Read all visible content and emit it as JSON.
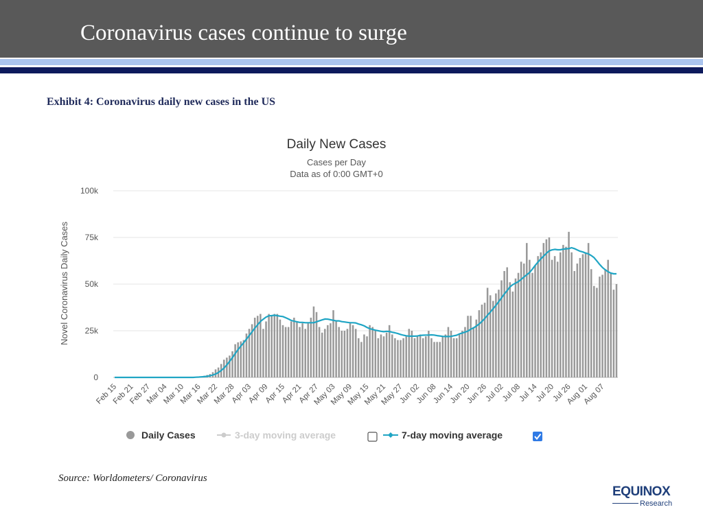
{
  "slide": {
    "title": "Coronavirus cases continue to surge",
    "exhibit": "Exhibit 4: Coronavirus daily new cases in the US",
    "source": "Source: Worldometers/ Coronavirus",
    "logo": {
      "text": "EQUINOX",
      "subtext": "Research"
    },
    "colors": {
      "header": "#595959",
      "stripe_light": "#aac4ee",
      "stripe_dark": "#0d1a5c"
    }
  },
  "chart_data": {
    "type": "bar",
    "title": "Daily New Cases",
    "subtitle": [
      "Cases per Day",
      "Data as of 0:00 GMT+0"
    ],
    "ylabel": "Novel Coronavirus Daily Cases",
    "ylim": [
      0,
      100000
    ],
    "y_ticks": [
      0,
      25000,
      50000,
      75000,
      100000
    ],
    "y_tick_labels": [
      "0",
      "25k",
      "50k",
      "75k",
      "100k"
    ],
    "x_start": "Feb 15",
    "x_tick_labels": [
      "Feb 15",
      "Feb 21",
      "Feb 27",
      "Mar 04",
      "Mar 10",
      "Mar 16",
      "Mar 22",
      "Mar 28",
      "Apr 03",
      "Apr 09",
      "Apr 15",
      "Apr 21",
      "Apr 27",
      "May 03",
      "May 09",
      "May 15",
      "May 21",
      "May 27",
      "Jun 02",
      "Jun 08",
      "Jun 14",
      "Jun 20",
      "Jun 26",
      "Jul 02",
      "Jul 08",
      "Jul 14",
      "Jul 20",
      "Jul 26",
      "Aug 01",
      "Aug 07"
    ],
    "grid": true,
    "legend_position": "bottom",
    "colors": {
      "bars": "#999999",
      "avg3": "#cccccc",
      "avg7": "#1fa5c4"
    },
    "series": [
      {
        "name": "Daily Cases",
        "type": "bar",
        "values": [
          0,
          0,
          0,
          0,
          0,
          0,
          0,
          0,
          0,
          0,
          0,
          0,
          0,
          0,
          0,
          0,
          0,
          0,
          0,
          0,
          0,
          0,
          0,
          0,
          0,
          0,
          0,
          100,
          200,
          300,
          400,
          600,
          900,
          1300,
          1800,
          2800,
          4300,
          5300,
          7200,
          9500,
          10600,
          11700,
          14000,
          17800,
          18800,
          19300,
          20000,
          23500,
          26000,
          28500,
          32000,
          33000,
          34000,
          26000,
          30000,
          34000,
          33000,
          34000,
          34000,
          31000,
          28000,
          27000,
          27000,
          30000,
          32000,
          30000,
          27000,
          29000,
          26000,
          29000,
          32000,
          38000,
          35000,
          27000,
          24000,
          26000,
          28000,
          29000,
          36000,
          30000,
          27000,
          25000,
          25000,
          26000,
          29000,
          28000,
          26000,
          21000,
          19000,
          23000,
          22000,
          28000,
          27000,
          25000,
          21000,
          23000,
          22000,
          24000,
          28000,
          23000,
          21000,
          20000,
          20000,
          21000,
          22000,
          26000,
          25000,
          21000,
          22000,
          23000,
          21000,
          22000,
          25000,
          21000,
          19000,
          19000,
          19000,
          22000,
          23000,
          27000,
          25000,
          21000,
          21000,
          23000,
          25000,
          27000,
          33000,
          33000,
          27000,
          31000,
          36000,
          39000,
          40000,
          48000,
          44000,
          41000,
          45000,
          47000,
          52000,
          57000,
          59000,
          51000,
          46000,
          53000,
          56000,
          62000,
          61000,
          72000,
          63000,
          56000,
          60000,
          65000,
          67000,
          72000,
          74000,
          75000,
          63000,
          65000,
          62000,
          67000,
          71000,
          70000,
          78000,
          67000,
          57000,
          61000,
          64000,
          66000,
          67000,
          72000,
          58000,
          49000,
          48000,
          54000,
          55000,
          58000,
          63000,
          56000,
          47000,
          50000
        ]
      },
      {
        "name": "3-day moving average",
        "type": "line",
        "enabled": false
      },
      {
        "name": "7-day moving average",
        "type": "line",
        "enabled": true,
        "values": [
          0,
          0,
          0,
          0,
          0,
          0,
          0,
          0,
          0,
          0,
          0,
          0,
          0,
          0,
          0,
          0,
          0,
          0,
          0,
          0,
          0,
          0,
          0,
          0,
          0,
          0,
          0,
          0,
          0,
          100,
          200,
          300,
          400,
          600,
          900,
          1300,
          1800,
          2600,
          3700,
          5000,
          6700,
          8600,
          10600,
          12800,
          14900,
          16800,
          18600,
          20500,
          22400,
          24400,
          26400,
          28200,
          30000,
          31200,
          32300,
          33000,
          33100,
          33300,
          33100,
          32800,
          32600,
          32000,
          31300,
          30500,
          30100,
          29800,
          29500,
          29500,
          29300,
          29300,
          29300,
          29300,
          29800,
          30300,
          30800,
          31300,
          31200,
          30900,
          30600,
          30300,
          30300,
          29900,
          29700,
          29500,
          29300,
          29300,
          29200,
          28600,
          28200,
          27600,
          26800,
          26100,
          25700,
          25300,
          25000,
          24700,
          24500,
          24700,
          24600,
          24200,
          23900,
          23500,
          23000,
          22600,
          22300,
          22100,
          22100,
          22100,
          22200,
          22500,
          22600,
          22700,
          22700,
          22800,
          22700,
          22400,
          22200,
          22000,
          21900,
          21900,
          22000,
          22300,
          22600,
          23300,
          23800,
          24300,
          24800,
          25800,
          26500,
          27500,
          28600,
          30000,
          31500,
          33300,
          35000,
          36800,
          38600,
          40600,
          42600,
          44700,
          46500,
          48500,
          49700,
          50500,
          51300,
          52500,
          53800,
          55000,
          56200,
          58000,
          60000,
          61800,
          63500,
          65000,
          66500,
          67800,
          68300,
          68600,
          68400,
          68400,
          68700,
          68900,
          69000,
          69500,
          69000,
          68300,
          67600,
          67200,
          66600,
          66200,
          65300,
          64200,
          62400,
          60500,
          58900,
          57700,
          56600,
          55900,
          55500,
          55500
        ]
      }
    ],
    "legend": [
      {
        "name": "Daily Cases",
        "marker": "circle"
      },
      {
        "name": "3-day moving average",
        "marker": "line-dot",
        "checked": false
      },
      {
        "name": "7-day moving average",
        "marker": "line-diamond",
        "checked": true
      }
    ]
  }
}
